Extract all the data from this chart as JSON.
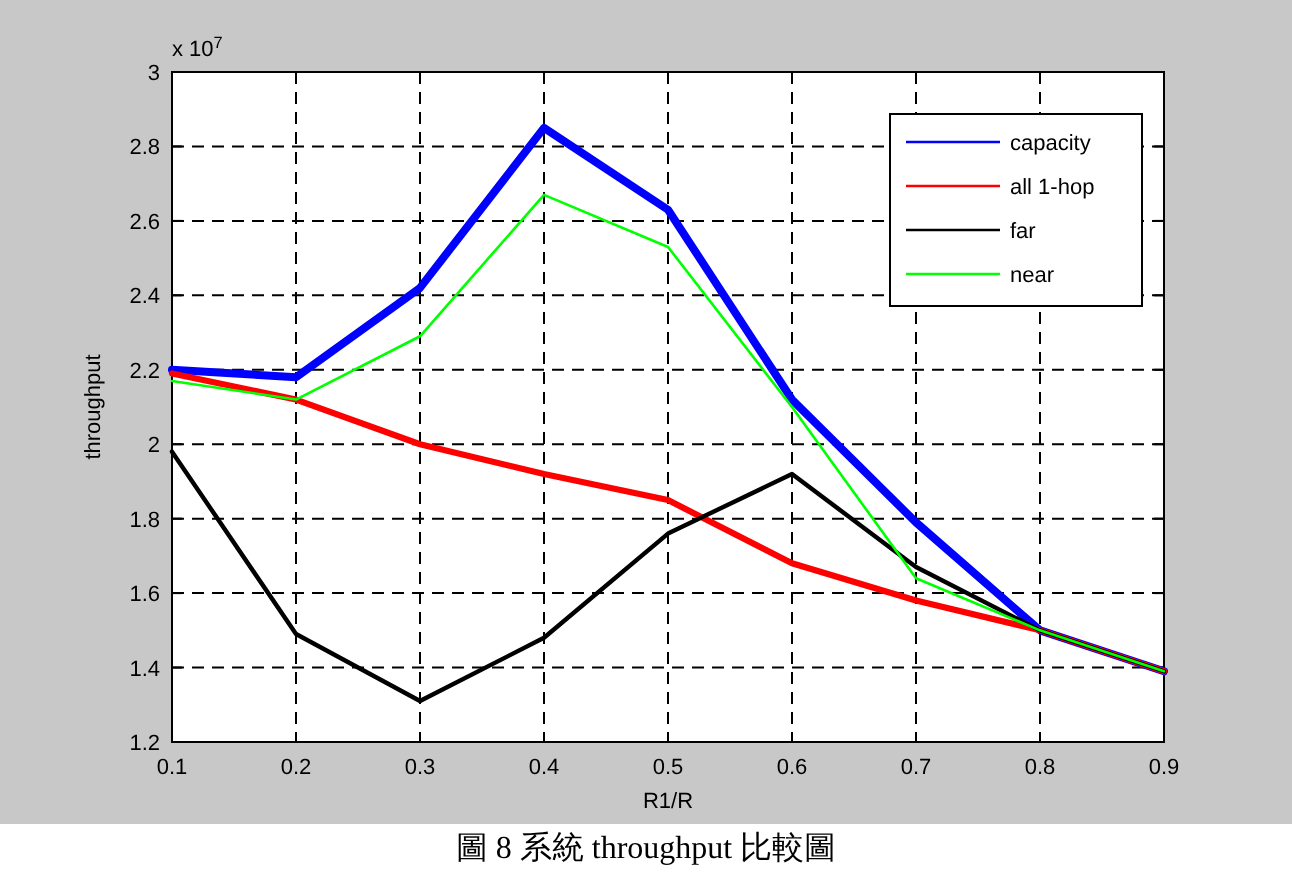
{
  "chart_data": {
    "type": "line",
    "xlabel": "R1/R",
    "ylabel": "throughput",
    "x": [
      0.1,
      0.2,
      0.3,
      0.4,
      0.5,
      0.6,
      0.7,
      0.8,
      0.9
    ],
    "series": [
      {
        "name": "capacity",
        "color": "#0000ff",
        "values": [
          2.2,
          2.18,
          2.42,
          2.85,
          2.63,
          2.12,
          1.79,
          1.5,
          1.39
        ]
      },
      {
        "name": "all 1-hop",
        "color": "#ff0000",
        "values": [
          2.19,
          2.12,
          2.0,
          1.92,
          1.85,
          1.68,
          1.58,
          1.5,
          1.39
        ]
      },
      {
        "name": "far",
        "color": "#000000",
        "values": [
          1.98,
          1.49,
          1.31,
          1.48,
          1.76,
          1.92,
          1.67,
          1.5,
          1.39
        ]
      },
      {
        "name": "near",
        "color": "#00ff00",
        "values": [
          2.17,
          2.12,
          2.29,
          2.67,
          2.53,
          2.1,
          1.64,
          1.5,
          1.39
        ]
      }
    ],
    "xlim": [
      0.1,
      0.9
    ],
    "ylim": [
      1.2,
      3
    ],
    "xticks": [
      0.1,
      0.2,
      0.3,
      0.4,
      0.5,
      0.6,
      0.7,
      0.8,
      0.9
    ],
    "yticks": [
      1.2,
      1.4,
      1.6,
      1.8,
      2,
      2.2,
      2.4,
      2.6,
      2.8,
      3
    ],
    "grid": true,
    "legend": "top right",
    "marker": "none",
    "line_style": "solid",
    "annotations": [
      "x 10$^{7}$",
      "圖 8  系統 throughput 比較圖"
    ]
  }
}
